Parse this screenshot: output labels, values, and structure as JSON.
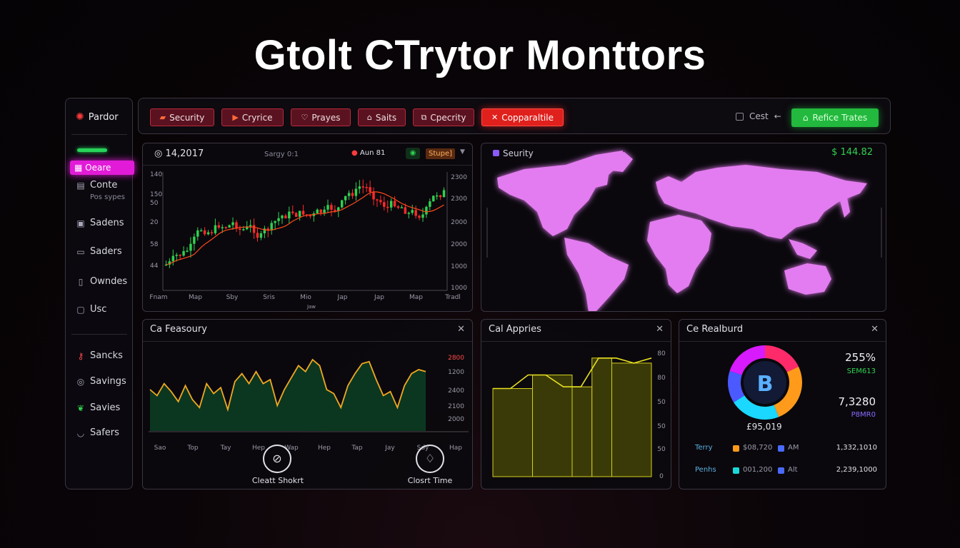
{
  "title": "Gtolt CTrytor Monttors",
  "sidebar": {
    "brand": "Pardor",
    "active": "Oeare",
    "items": [
      {
        "label": "Conte",
        "icon": "card-icon"
      },
      {
        "label": "Sadens",
        "icon": "wallet-icon"
      },
      {
        "label": "Saders",
        "icon": "monitor-icon"
      },
      {
        "label": "Owndes",
        "icon": "file-icon"
      },
      {
        "label": "Usc",
        "icon": "doc-icon"
      },
      {
        "label": "Sancks",
        "icon": "key-icon"
      },
      {
        "label": "Savings",
        "icon": "coins-icon"
      },
      {
        "label": "Savies",
        "icon": "leaf-icon"
      },
      {
        "label": "Safers",
        "icon": "bowl-icon"
      }
    ],
    "sub": "Pos sypes"
  },
  "toolbar": {
    "buttons": [
      "Security",
      "Cryrice",
      "Prayes",
      "Saits",
      "Cpecrity",
      "Copparaltile"
    ],
    "cest": "Cest",
    "green": "Refice Trates"
  },
  "candle": {
    "price": "14,2017",
    "mid": "Sargy 0:1",
    "alert": "Aun 81",
    "badge": "Stupe]",
    "ylabels_left": [
      "140",
      "150",
      "50",
      "20",
      "58",
      "44"
    ],
    "ylabels_right": [
      "2300",
      "2300",
      "2000",
      "2000",
      "1000",
      "1000"
    ],
    "xlabels": [
      "Fnam",
      "Map",
      "Sby",
      "Sris",
      "Mio",
      "Jap",
      "Jap",
      "Map",
      "Tradl"
    ],
    "xsub": "Jaw"
  },
  "map": {
    "label": "Seurity",
    "value": "$ 144.82"
  },
  "feasury": {
    "title": "Ca Feasoury",
    "values": [
      40,
      34,
      46,
      38,
      28,
      44,
      30,
      22,
      46,
      36,
      42,
      20,
      48,
      56,
      46,
      58,
      46,
      50,
      24,
      40,
      52,
      64,
      58,
      70,
      64,
      40,
      36,
      22,
      44,
      56,
      66,
      68,
      50,
      34,
      38,
      22,
      44,
      56,
      60,
      58
    ],
    "ylabels": [
      "2800",
      "1200",
      "2400",
      "2100",
      "2000"
    ],
    "xlabels": [
      "Sao",
      "Top",
      "Tay",
      "Hep",
      "Wap",
      "Hep",
      "Tap",
      "Jay",
      "Sdy",
      "Hap"
    ],
    "actions": [
      "Cleatt Shokrt",
      "Closrt Time"
    ]
  },
  "apprise": {
    "title": "Cal Appries",
    "values": [
      52,
      52,
      60,
      60,
      53,
      53,
      70,
      70,
      67,
      70
    ],
    "ylabels": [
      "80",
      "80",
      "50",
      "50",
      "50",
      "40",
      "0"
    ]
  },
  "realburd": {
    "title": "Ce Realburd",
    "donut_center": "B",
    "donut_caption": "£95,019",
    "pct": "255%",
    "pct_sub": "SEM613",
    "total": "7,3280",
    "total_sub": "P8MR0",
    "slices": [
      {
        "color": "#ff2a6a",
        "value": 18
      },
      {
        "color": "#ff9a1a",
        "value": 26
      },
      {
        "color": "#1ad8ff",
        "value": 22
      },
      {
        "color": "#4a5aff",
        "value": 14
      },
      {
        "color": "#d81aff",
        "value": 20
      }
    ],
    "rows": [
      {
        "label": "Terry",
        "c1": "#ff9a1a",
        "v1": "$08,720",
        "c2": "#4a6aff",
        "v2": "AM",
        "amount": "1,332,1010"
      },
      {
        "label": "Penhs",
        "c1": "#1ad8d8",
        "v1": "001,200",
        "c2": "#4a6aff",
        "v2": "Alt",
        "amount": "2,239,1000"
      }
    ]
  },
  "colors": {
    "up": "#2fd14f",
    "down": "#ff2a2a",
    "accent": "#e21bd8",
    "map": "#e37bf0",
    "line": "#f2a821",
    "bars": "#d4d01c"
  }
}
